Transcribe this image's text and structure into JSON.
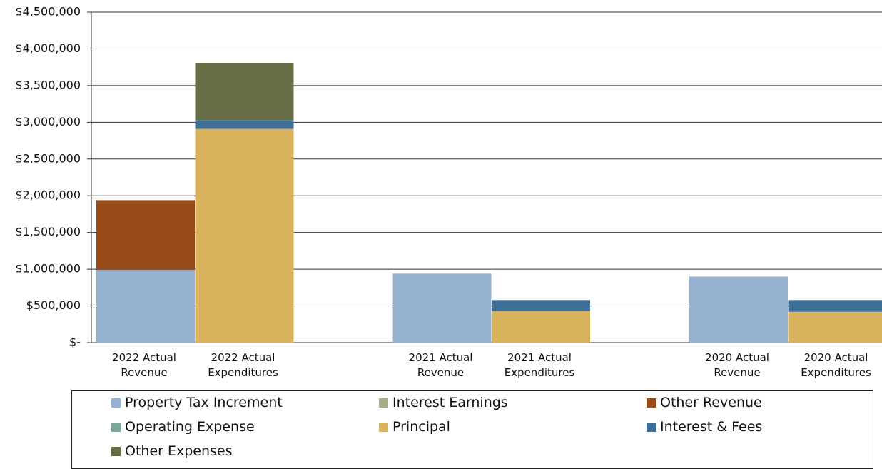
{
  "chart_data": {
    "type": "stacked_bar",
    "categories": [
      "2022 Actual Revenue",
      "2022 Actual Expenditures",
      null,
      "2021 Actual Revenue",
      "2021 Actual Expenditures",
      null,
      "2020 Actual Revenue",
      "2020 Actual Expenditures"
    ],
    "series": [
      {
        "name": "Property Tax Increment",
        "color": "#95b3d0",
        "values": [
          990000,
          0,
          null,
          940000,
          0,
          null,
          900000,
          0
        ]
      },
      {
        "name": "Interest Earnings",
        "color": "#a5ae8a",
        "values": [
          0,
          0,
          null,
          0,
          0,
          null,
          0,
          0
        ]
      },
      {
        "name": "Other Revenue",
        "color": "#974b1b",
        "values": [
          950000,
          0,
          null,
          0,
          0,
          null,
          0,
          0
        ]
      },
      {
        "name": "Operating Expense",
        "color": "#79a89b",
        "values": [
          0,
          0,
          null,
          0,
          0,
          null,
          0,
          0
        ]
      },
      {
        "name": "Principal",
        "color": "#d8b25c",
        "values": [
          0,
          2910000,
          null,
          0,
          430000,
          null,
          0,
          420000
        ]
      },
      {
        "name": "Interest & Fees",
        "color": "#3f6e96",
        "values": [
          0,
          120000,
          null,
          0,
          150000,
          null,
          0,
          160000
        ]
      },
      {
        "name": "Other Expenses",
        "color": "#676d45",
        "values": [
          0,
          780000,
          null,
          0,
          0,
          null,
          0,
          0
        ]
      }
    ],
    "ylim": [
      0,
      4500000
    ],
    "yticks": [
      {
        "value": 0,
        "label": "$-"
      },
      {
        "value": 500000,
        "label": "$500,000"
      },
      {
        "value": 1000000,
        "label": "$1,000,000"
      },
      {
        "value": 1500000,
        "label": "$1,500,000"
      },
      {
        "value": 2000000,
        "label": "$2,000,000"
      },
      {
        "value": 2500000,
        "label": "$2,500,000"
      },
      {
        "value": 3000000,
        "label": "$3,000,000"
      },
      {
        "value": 3500000,
        "label": "$3,500,000"
      },
      {
        "value": 4000000,
        "label": "$4,000,000"
      },
      {
        "value": 4500000,
        "label": "$4,500,000"
      }
    ],
    "grid": true
  }
}
